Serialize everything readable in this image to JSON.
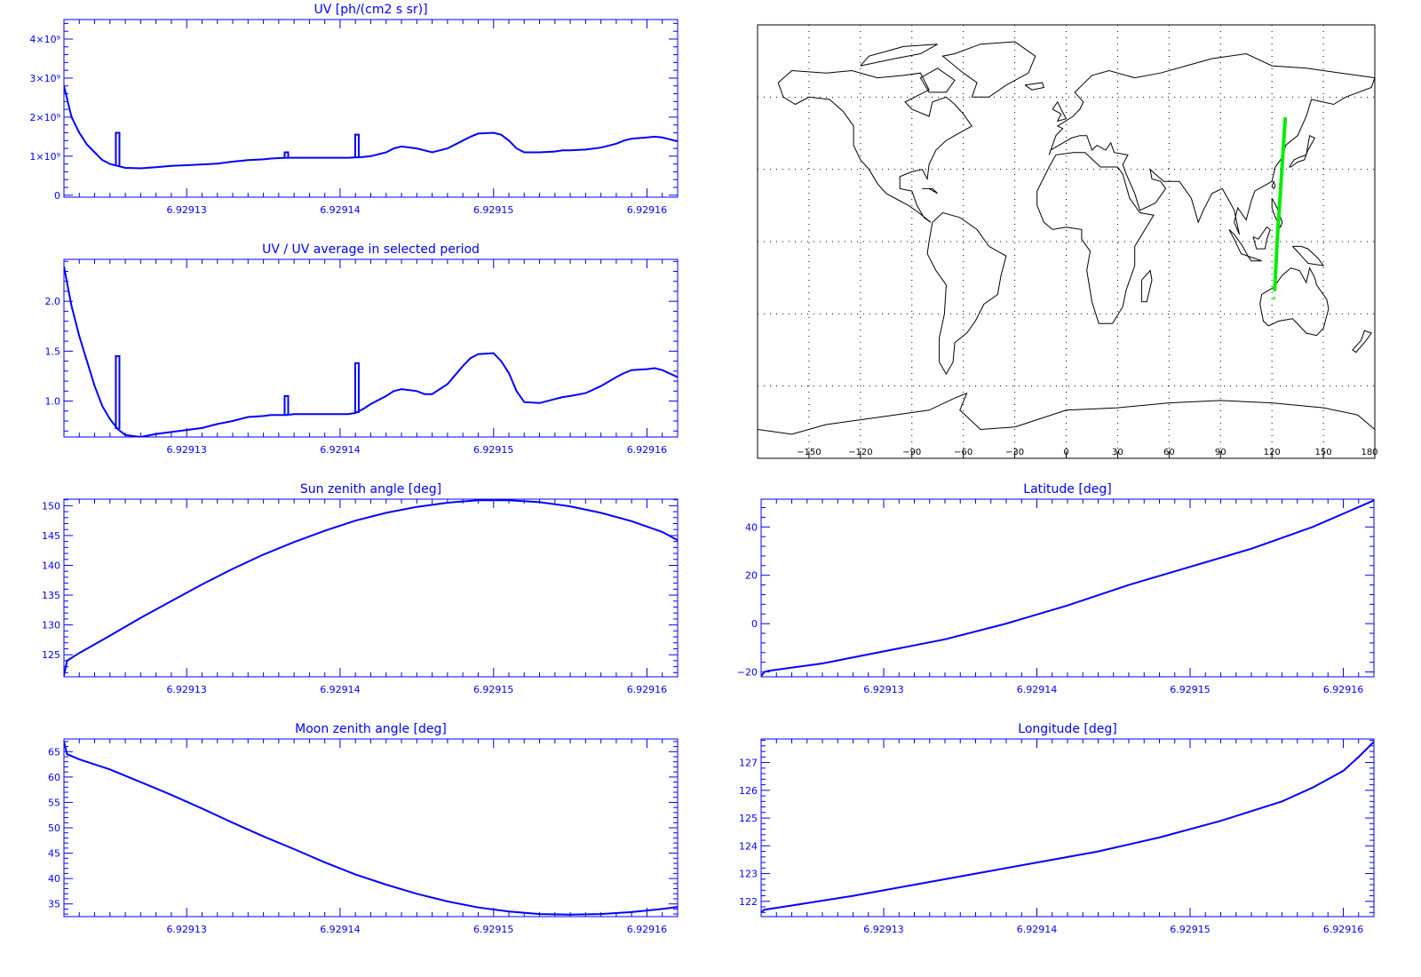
{
  "colors": {
    "axis": "#0000ff",
    "series": "#0000ff",
    "track": "#00ee00",
    "coast": "#000000",
    "grid": "#000000"
  },
  "chart_data": [
    {
      "id": "uv",
      "type": "line",
      "title": "UV [ph/(cm2 s sr)]",
      "xlim": [
        6.929122,
        6.929162
      ],
      "xticks": [
        6.92913,
        6.92914,
        6.92915,
        6.92916
      ],
      "xtick_labels": [
        "6.92913",
        "6.92914",
        "6.92915",
        "6.92916"
      ],
      "ylim": [
        -50000000,
        4500000000
      ],
      "yticks": [
        0,
        1000000000,
        2000000000,
        3000000000,
        4000000000
      ],
      "ytick_labels": [
        "0",
        "1×10⁹",
        "2×10⁹",
        "3×10⁹",
        "4×10⁹"
      ],
      "x": [
        6.929122,
        6.9291225,
        6.929123,
        6.9291235,
        6.929124,
        6.9291245,
        6.929125,
        6.9291255,
        6.929126,
        6.929127,
        6.929128,
        6.929129,
        6.92913,
        6.929131,
        6.929132,
        6.929133,
        6.929134,
        6.929135,
        6.9291355,
        6.929136,
        6.9291365,
        6.929137,
        6.929138,
        6.9291385,
        6.929139,
        6.92914,
        6.9291405,
        6.929141,
        6.9291415,
        6.929142,
        6.929143,
        6.9291435,
        6.929144,
        6.929145,
        6.9291455,
        6.929146,
        6.929147,
        6.929148,
        6.9291485,
        6.929149,
        6.92915,
        6.9291505,
        6.929151,
        6.9291515,
        6.929152,
        6.929153,
        6.929154,
        6.9291545,
        6.929155,
        6.929156,
        6.929157,
        6.929158,
        6.9291585,
        6.929159,
        6.92916,
        6.9291605,
        6.929161,
        6.929162
      ],
      "y": [
        2800000000.0,
        2000000000.0,
        1600000000.0,
        1300000000.0,
        1100000000.0,
        900000000.0,
        800000000.0,
        750000000.0,
        700000000.0,
        690000000.0,
        720000000.0,
        750000000.0,
        770000000.0,
        790000000.0,
        810000000.0,
        860000000.0,
        900000000.0,
        920000000.0,
        940000000.0,
        950000000.0,
        960000000.0,
        960000000.0,
        960000000.0,
        960000000.0,
        960000000.0,
        960000000.0,
        960000000.0,
        970000000.0,
        980000000.0,
        1000000000.0,
        1100000000.0,
        1200000000.0,
        1250000000.0,
        1200000000.0,
        1150000000.0,
        1100000000.0,
        1200000000.0,
        1400000000.0,
        1500000000.0,
        1580000000.0,
        1600000000.0,
        1550000000.0,
        1400000000.0,
        1200000000.0,
        1100000000.0,
        1100000000.0,
        1120000000.0,
        1150000000.0,
        1150000000.0,
        1170000000.0,
        1220000000.0,
        1320000000.0,
        1400000000.0,
        1450000000.0,
        1480000000.0,
        1500000000.0,
        1480000000.0,
        1380000000.0
      ],
      "spikes": [
        {
          "x": 6.9291255,
          "y": 1600000000.0
        },
        {
          "x": 6.9291365,
          "y": 1100000000.0
        },
        {
          "x": 6.9291411,
          "y": 1550000000.0
        }
      ]
    },
    {
      "id": "uvratio",
      "type": "line",
      "title": "UV / UV average in selected period",
      "xlim": [
        6.929122,
        6.929162
      ],
      "xticks": [
        6.92913,
        6.92914,
        6.92915,
        6.92916
      ],
      "xtick_labels": [
        "6.92913",
        "6.92914",
        "6.92915",
        "6.92916"
      ],
      "ylim": [
        0.64,
        2.42
      ],
      "yticks": [
        1.0,
        1.5,
        2.0
      ],
      "ytick_labels": [
        "1.0",
        "1.5",
        "2.0"
      ],
      "x": [
        6.929122,
        6.9291225,
        6.929123,
        6.9291235,
        6.929124,
        6.9291245,
        6.929125,
        6.9291255,
        6.929126,
        6.929127,
        6.929128,
        6.929129,
        6.92913,
        6.929131,
        6.929132,
        6.929133,
        6.929134,
        6.929135,
        6.9291355,
        6.929136,
        6.9291365,
        6.929137,
        6.929138,
        6.9291385,
        6.929139,
        6.92914,
        6.9291405,
        6.929141,
        6.9291415,
        6.929142,
        6.929143,
        6.9291435,
        6.929144,
        6.929145,
        6.9291455,
        6.929146,
        6.929147,
        6.929148,
        6.9291485,
        6.929149,
        6.92915,
        6.9291505,
        6.929151,
        6.9291515,
        6.929152,
        6.929153,
        6.929154,
        6.9291545,
        6.929155,
        6.929156,
        6.929157,
        6.929158,
        6.9291585,
        6.929159,
        6.92916,
        6.9291605,
        6.929161,
        6.929162
      ],
      "y": [
        2.35,
        1.95,
        1.65,
        1.4,
        1.15,
        0.95,
        0.82,
        0.72,
        0.66,
        0.64,
        0.67,
        0.69,
        0.71,
        0.73,
        0.77,
        0.8,
        0.84,
        0.85,
        0.86,
        0.86,
        0.86,
        0.87,
        0.87,
        0.87,
        0.87,
        0.87,
        0.87,
        0.88,
        0.92,
        0.97,
        1.05,
        1.1,
        1.12,
        1.1,
        1.07,
        1.07,
        1.17,
        1.35,
        1.43,
        1.47,
        1.48,
        1.4,
        1.28,
        1.1,
        0.99,
        0.98,
        1.02,
        1.04,
        1.05,
        1.08,
        1.15,
        1.24,
        1.28,
        1.31,
        1.32,
        1.33,
        1.31,
        1.24
      ],
      "spikes": [
        {
          "x": 6.9291255,
          "y": 1.45
        },
        {
          "x": 6.9291365,
          "y": 1.05
        },
        {
          "x": 6.9291411,
          "y": 1.38
        }
      ]
    },
    {
      "id": "sza",
      "type": "line",
      "title": "Sun zenith angle [deg]",
      "xlim": [
        6.929122,
        6.929162
      ],
      "xticks": [
        6.92913,
        6.92914,
        6.92915,
        6.92916
      ],
      "xtick_labels": [
        "6.92913",
        "6.92914",
        "6.92915",
        "6.92916"
      ],
      "ylim": [
        121.3,
        151.1
      ],
      "yticks": [
        125,
        130,
        135,
        140,
        145,
        150
      ],
      "ytick_labels": [
        "125",
        "130",
        "135",
        "140",
        "145",
        "150"
      ],
      "x": [
        6.929122,
        6.9291222,
        6.929123,
        6.929125,
        6.929127,
        6.929129,
        6.929131,
        6.929133,
        6.929135,
        6.929137,
        6.929139,
        6.929141,
        6.929143,
        6.929145,
        6.929147,
        6.929149,
        6.929151,
        6.929153,
        6.929155,
        6.929157,
        6.929159,
        6.929161,
        6.929162
      ],
      "y": [
        121.5,
        124.0,
        125.3,
        128.2,
        131.2,
        134.0,
        136.8,
        139.4,
        141.8,
        143.9,
        145.8,
        147.5,
        148.8,
        149.8,
        150.5,
        150.9,
        150.9,
        150.6,
        149.9,
        148.8,
        147.4,
        145.6,
        144.2
      ]
    },
    {
      "id": "lat",
      "type": "line",
      "title": "Latitude [deg]",
      "xlim": [
        6.929122,
        6.929162
      ],
      "xticks": [
        6.92913,
        6.92914,
        6.92915,
        6.92916
      ],
      "xtick_labels": [
        "6.92913",
        "6.92914",
        "6.92915",
        "6.92916"
      ],
      "ylim": [
        -22,
        51.5
      ],
      "yticks": [
        -20,
        0,
        20,
        40
      ],
      "ytick_labels": [
        "−20",
        "0",
        "20",
        "40"
      ],
      "x": [
        6.929122,
        6.9291222,
        6.9291225,
        6.929126,
        6.92913,
        6.929134,
        6.929138,
        6.929142,
        6.929146,
        6.92915,
        6.929154,
        6.929158,
        6.929162
      ],
      "y": [
        -21.8,
        -20.0,
        -19.5,
        -16.5,
        -11.5,
        -6.5,
        0.0,
        7.5,
        16.0,
        23.5,
        31.0,
        40.0,
        51.0
      ]
    },
    {
      "id": "mza",
      "type": "line",
      "title": "Moon zenith angle [deg]",
      "xlim": [
        6.929122,
        6.929162
      ],
      "xticks": [
        6.92913,
        6.92914,
        6.92915,
        6.92916
      ],
      "xtick_labels": [
        "6.92913",
        "6.92914",
        "6.92915",
        "6.92916"
      ],
      "ylim": [
        32.5,
        67.5
      ],
      "yticks": [
        35,
        40,
        45,
        50,
        55,
        60,
        65
      ],
      "ytick_labels": [
        "35",
        "40",
        "45",
        "50",
        "55",
        "60",
        "65"
      ],
      "x": [
        6.929122,
        6.9291222,
        6.929123,
        6.929125,
        6.929127,
        6.929129,
        6.929131,
        6.929133,
        6.929135,
        6.929137,
        6.929139,
        6.929141,
        6.929143,
        6.929145,
        6.929147,
        6.929149,
        6.929151,
        6.929153,
        6.929155,
        6.929157,
        6.929159,
        6.929161,
        6.929162
      ],
      "y": [
        67.0,
        64.5,
        63.5,
        61.5,
        59.0,
        56.5,
        53.8,
        51.0,
        48.3,
        45.8,
        43.2,
        40.8,
        38.8,
        37.0,
        35.5,
        34.3,
        33.5,
        33.0,
        32.9,
        33.0,
        33.4,
        34.0,
        34.4
      ]
    },
    {
      "id": "lon",
      "type": "line",
      "title": "Longitude [deg]",
      "xlim": [
        6.929122,
        6.929162
      ],
      "xticks": [
        6.92913,
        6.92914,
        6.92915,
        6.92916
      ],
      "xtick_labels": [
        "6.92913",
        "6.92914",
        "6.92915",
        "6.92916"
      ],
      "ylim": [
        121.45,
        127.85
      ],
      "yticks": [
        122,
        123,
        124,
        125,
        126,
        127
      ],
      "ytick_labels": [
        "122",
        "123",
        "124",
        "125",
        "126",
        "127"
      ],
      "x": [
        6.929122,
        6.9291222,
        6.929124,
        6.929128,
        6.929132,
        6.929136,
        6.92914,
        6.929144,
        6.929148,
        6.929152,
        6.929156,
        6.929158,
        6.92916,
        6.929161,
        6.929162
      ],
      "y": [
        121.6,
        121.7,
        121.85,
        122.2,
        122.6,
        123.0,
        123.4,
        123.8,
        124.3,
        124.9,
        125.6,
        126.1,
        126.7,
        127.2,
        127.75
      ]
    }
  ],
  "map": {
    "xlim": [
      -180,
      180
    ],
    "ylim": [
      -90,
      90
    ],
    "lon_ticks": [
      -150,
      -120,
      -90,
      -60,
      -30,
      0,
      30,
      60,
      90,
      120,
      150,
      180
    ],
    "lon_tick_labels": [
      "−150",
      "−120",
      "−90",
      "−60",
      "−30",
      "0",
      "30",
      "60",
      "90",
      "120",
      "150",
      "180"
    ],
    "grid": true,
    "track": [
      [
        121.6,
        -20
      ],
      [
        123.0,
        0
      ],
      [
        124.9,
        20
      ],
      [
        127.75,
        51
      ]
    ],
    "start_marker": [
      121.5,
      -23
    ]
  }
}
